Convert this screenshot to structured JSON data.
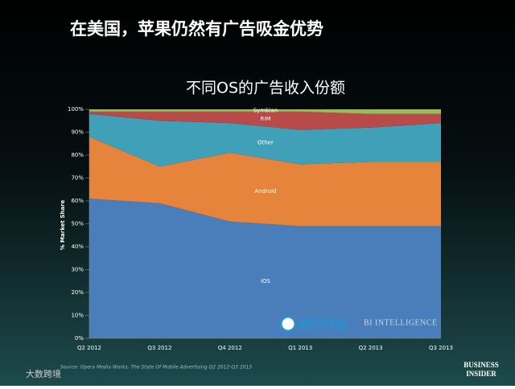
{
  "slide": {
    "heading": "在美国，苹果仍然有广告吸金优势",
    "source": "Source: Opera Media Works, The State Of Mobile Advertising Q2 2012-Q3 2013",
    "brand_top": "BUSINESS",
    "brand_bottom": "INSIDER",
    "watermark_cn": "腾讯科技",
    "watermark_en": "BI INTELLIGENCE",
    "corner": "大数跨境"
  },
  "chart_data": {
    "type": "stacked_area",
    "title": "不同OS的广告收入份额",
    "ylabel": "% Market Share",
    "categories": [
      "Q2 2012",
      "Q3 2012",
      "Q4 2012",
      "Q1 2013",
      "Q2 2013",
      "Q3 2013"
    ],
    "series": [
      {
        "name": "iOS",
        "color": "#4a7ebb",
        "values": [
          61,
          59,
          51,
          49,
          49,
          49
        ]
      },
      {
        "name": "Android",
        "color": "#e5843a",
        "values": [
          27,
          16,
          30,
          27,
          28,
          28
        ]
      },
      {
        "name": "Other",
        "color": "#3fa0b8",
        "values": [
          10,
          20,
          13,
          15,
          15,
          17
        ]
      },
      {
        "name": "RIM",
        "color": "#b84a4a",
        "values": [
          1,
          4,
          5,
          8,
          6,
          4
        ]
      },
      {
        "name": "Symbian",
        "color": "#9bbb59",
        "values": [
          1,
          1,
          1,
          1,
          2,
          2
        ]
      }
    ],
    "ylim": [
      0,
      100
    ],
    "yticks": [
      {
        "value": 0,
        "label": "0%"
      },
      {
        "value": 10,
        "label": "10%"
      },
      {
        "value": 20,
        "label": "20%"
      },
      {
        "value": 30,
        "label": "30%"
      },
      {
        "value": 40,
        "label": "40%"
      },
      {
        "value": 50,
        "label": "50%"
      },
      {
        "value": 60,
        "label": "60%"
      },
      {
        "value": 70,
        "label": "70%"
      },
      {
        "value": 80,
        "label": "80%"
      },
      {
        "value": 90,
        "label": "90%"
      },
      {
        "value": 100,
        "label": "100%"
      }
    ]
  }
}
